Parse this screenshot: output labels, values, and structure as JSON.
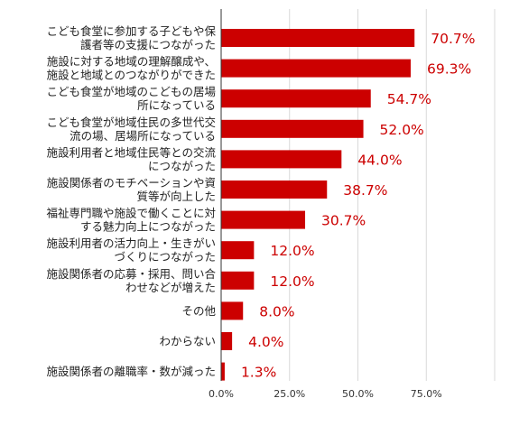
{
  "chart_data": {
    "type": "bar",
    "orientation": "horizontal",
    "categories": [
      [
        "こども食堂に参加する子どもや保",
        "護者等の支援につながった"
      ],
      [
        "施設に対する地域の理解醸成や、",
        "施設と地域とのつながりができた"
      ],
      [
        "こども食堂が地域のこどもの居場",
        "所になっている"
      ],
      [
        "こども食堂が地域住民の多世代交",
        "流の場、居場所になっている"
      ],
      [
        "施設利用者と地域住民等との交流",
        "につながった"
      ],
      [
        "施設関係者のモチベーションや資",
        "質等が向上した"
      ],
      [
        "福祉専門職や施設で働くことに対",
        "する魅力向上につながった"
      ],
      [
        "施設利用者の活力向上・生きがい",
        "づくりにつながった"
      ],
      [
        "施設関係者の応募・採用、問い合",
        "わせなどが増えた"
      ],
      [
        "その他"
      ],
      [
        "わからない"
      ],
      [
        "施設関係者の離職率・数が減った"
      ]
    ],
    "values": [
      70.7,
      69.3,
      54.7,
      52.0,
      44.0,
      38.7,
      30.7,
      12.0,
      12.0,
      8.0,
      4.0,
      1.3
    ],
    "value_labels": [
      "70.7%",
      "69.3%",
      "54.7%",
      "52.0%",
      "44.0%",
      "38.7%",
      "30.7%",
      "12.0%",
      "12.0%",
      "8.0%",
      "4.0%",
      "1.3%"
    ],
    "x_ticks": [
      0,
      25,
      50,
      75,
      100
    ],
    "x_tick_labels": [
      "0.0%",
      "25.0%",
      "50.0%",
      "75.0%",
      ""
    ],
    "xlim": [
      0,
      100
    ],
    "grid": true,
    "colors": {
      "bar": "#cc0000",
      "value_label": "#cc0000"
    }
  }
}
